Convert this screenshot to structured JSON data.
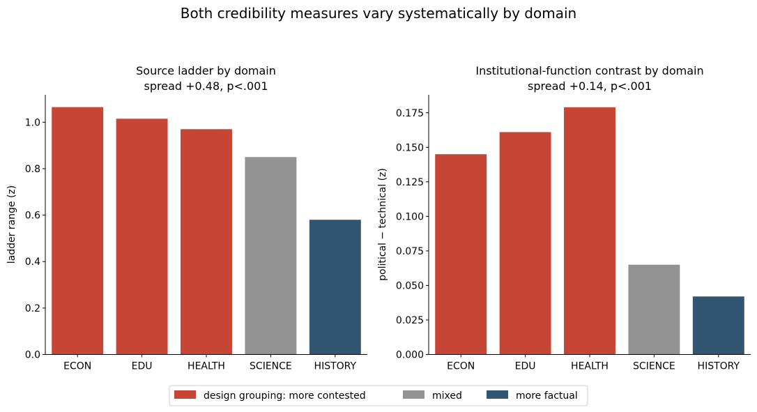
{
  "figure_title": "Both credibility measures vary systematically by domain",
  "legend": {
    "items": [
      {
        "label": "design grouping: more contested",
        "color": "#c64535"
      },
      {
        "label": "mixed",
        "color": "#939393"
      },
      {
        "label": "more factual",
        "color": "#325572"
      }
    ]
  },
  "chart_data": [
    {
      "type": "bar",
      "title": "Source ladder by domain",
      "subtitle": "spread +0.48, p<.001",
      "xlabel": "",
      "ylabel": "ladder range (z)",
      "categories": [
        "ECON",
        "EDU",
        "HEALTH",
        "SCIENCE",
        "HISTORY"
      ],
      "values": [
        1.065,
        1.015,
        0.97,
        0.85,
        0.58
      ],
      "bar_groups": [
        "more contested",
        "more contested",
        "more contested",
        "mixed",
        "more factual"
      ],
      "colors": [
        "#c64535",
        "#c64535",
        "#c64535",
        "#939393",
        "#325572"
      ],
      "ylim": [
        0,
        1.118
      ],
      "yticks": [
        0.0,
        0.2,
        0.4,
        0.6,
        0.8,
        1.0
      ],
      "ytick_labels": [
        "0.0",
        "0.2",
        "0.4",
        "0.6",
        "0.8",
        "1.0"
      ],
      "grid": false
    },
    {
      "type": "bar",
      "title": "Institutional-function contrast by domain",
      "subtitle": "spread +0.14, p<.001",
      "xlabel": "",
      "ylabel": "political − technical (z)",
      "categories": [
        "ECON",
        "EDU",
        "HEALTH",
        "SCIENCE",
        "HISTORY"
      ],
      "values": [
        0.145,
        0.161,
        0.179,
        0.065,
        0.042
      ],
      "bar_groups": [
        "more contested",
        "more contested",
        "more contested",
        "mixed",
        "more factual"
      ],
      "colors": [
        "#c64535",
        "#c64535",
        "#c64535",
        "#939393",
        "#325572"
      ],
      "ylim": [
        0,
        0.188
      ],
      "yticks": [
        0.0,
        0.025,
        0.05,
        0.075,
        0.1,
        0.125,
        0.15,
        0.175
      ],
      "ytick_labels": [
        "0.000",
        "0.025",
        "0.050",
        "0.075",
        "0.100",
        "0.125",
        "0.150",
        "0.175"
      ],
      "grid": false
    }
  ]
}
